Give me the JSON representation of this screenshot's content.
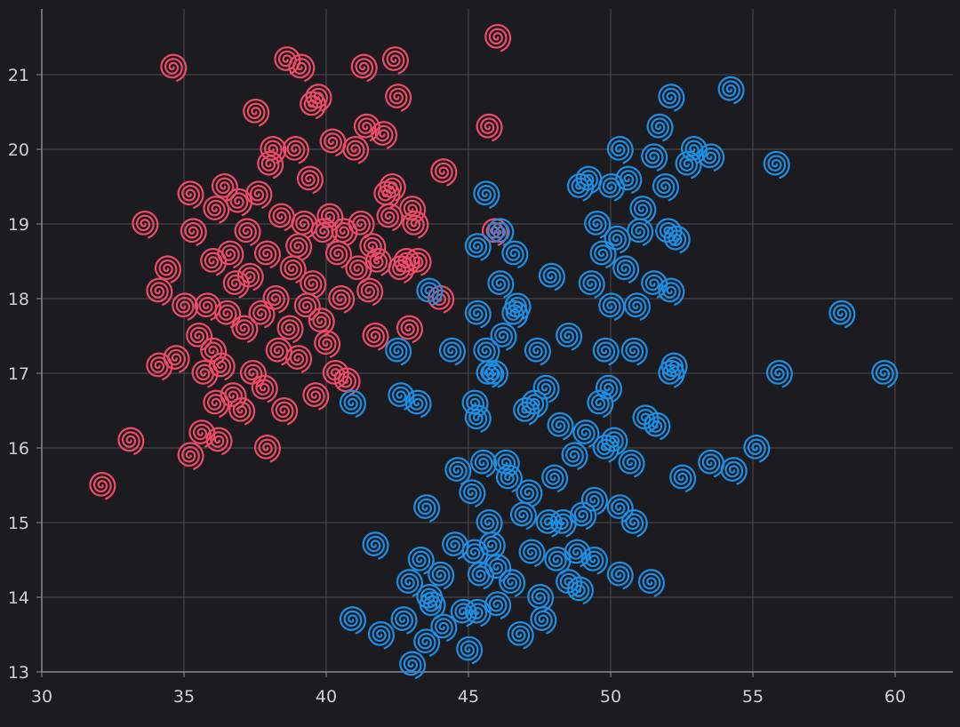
{
  "chart_data": {
    "type": "scatter",
    "title": "",
    "xlabel": "",
    "ylabel": "",
    "xlim": [
      30,
      62
    ],
    "ylim": [
      13,
      21.9
    ],
    "xticks": [
      30,
      35,
      40,
      45,
      50,
      55,
      60
    ],
    "yticks": [
      13,
      14,
      15,
      16,
      17,
      18,
      19,
      20,
      21
    ],
    "grid": true,
    "marker": "spiral",
    "series": [
      {
        "color": "#ef4a68",
        "points": [
          [
            32.1,
            15.5
          ],
          [
            33.1,
            16.1
          ],
          [
            33.6,
            19.0
          ],
          [
            34.1,
            17.1
          ],
          [
            34.1,
            18.1
          ],
          [
            34.4,
            18.4
          ],
          [
            34.6,
            21.1
          ],
          [
            34.7,
            17.2
          ],
          [
            35.0,
            17.9
          ],
          [
            35.2,
            19.4
          ],
          [
            35.2,
            15.9
          ],
          [
            35.3,
            18.9
          ],
          [
            35.5,
            17.5
          ],
          [
            35.6,
            16.2
          ],
          [
            35.7,
            17.0
          ],
          [
            35.8,
            17.9
          ],
          [
            36.0,
            18.5
          ],
          [
            36.0,
            17.3
          ],
          [
            36.1,
            19.2
          ],
          [
            36.1,
            16.6
          ],
          [
            36.2,
            16.1
          ],
          [
            36.3,
            17.1
          ],
          [
            36.4,
            19.5
          ],
          [
            36.5,
            17.8
          ],
          [
            36.6,
            18.6
          ],
          [
            36.7,
            16.7
          ],
          [
            36.8,
            18.2
          ],
          [
            36.9,
            19.3
          ],
          [
            37.0,
            16.5
          ],
          [
            37.1,
            17.6
          ],
          [
            37.2,
            18.9
          ],
          [
            37.3,
            18.3
          ],
          [
            37.4,
            17.0
          ],
          [
            37.5,
            20.5
          ],
          [
            37.6,
            19.4
          ],
          [
            37.7,
            17.8
          ],
          [
            37.8,
            16.8
          ],
          [
            37.9,
            18.6
          ],
          [
            37.9,
            16.0
          ],
          [
            38.0,
            19.8
          ],
          [
            38.1,
            20.0
          ],
          [
            38.2,
            18.0
          ],
          [
            38.3,
            17.3
          ],
          [
            38.4,
            19.1
          ],
          [
            38.5,
            16.5
          ],
          [
            38.6,
            21.2
          ],
          [
            38.7,
            17.6
          ],
          [
            38.8,
            18.4
          ],
          [
            38.9,
            20.0
          ],
          [
            39.0,
            17.2
          ],
          [
            39.0,
            18.7
          ],
          [
            39.1,
            21.1
          ],
          [
            39.2,
            19.0
          ],
          [
            39.3,
            17.9
          ],
          [
            39.4,
            19.6
          ],
          [
            39.5,
            20.6
          ],
          [
            39.5,
            18.2
          ],
          [
            39.6,
            16.7
          ],
          [
            39.7,
            20.7
          ],
          [
            39.8,
            17.7
          ],
          [
            39.9,
            18.9
          ],
          [
            40.0,
            17.4
          ],
          [
            40.1,
            19.1
          ],
          [
            40.2,
            20.1
          ],
          [
            40.3,
            17.0
          ],
          [
            40.4,
            18.6
          ],
          [
            40.5,
            18.0
          ],
          [
            40.6,
            18.9
          ],
          [
            40.7,
            16.9
          ],
          [
            41.0,
            20.0
          ],
          [
            41.1,
            18.4
          ],
          [
            41.2,
            19.0
          ],
          [
            41.3,
            21.1
          ],
          [
            41.4,
            20.3
          ],
          [
            41.5,
            18.1
          ],
          [
            41.6,
            18.7
          ],
          [
            41.7,
            17.5
          ],
          [
            41.8,
            18.5
          ],
          [
            42.0,
            20.2
          ],
          [
            42.1,
            19.4
          ],
          [
            42.2,
            19.1
          ],
          [
            42.3,
            19.5
          ],
          [
            42.4,
            21.2
          ],
          [
            42.5,
            20.7
          ],
          [
            42.6,
            18.4
          ],
          [
            42.8,
            18.5
          ],
          [
            42.9,
            17.6
          ],
          [
            43.0,
            19.2
          ],
          [
            43.1,
            19.0
          ],
          [
            43.2,
            18.5
          ],
          [
            44.0,
            18.0
          ],
          [
            44.1,
            19.7
          ],
          [
            45.7,
            20.3
          ],
          [
            46.0,
            21.5
          ],
          [
            45.9,
            18.9
          ]
        ]
      },
      {
        "color": "#1d90e6",
        "points": [
          [
            40.9,
            16.6
          ],
          [
            40.9,
            13.7
          ],
          [
            41.7,
            14.7
          ],
          [
            41.9,
            13.5
          ],
          [
            42.5,
            17.3
          ],
          [
            42.6,
            16.7
          ],
          [
            42.7,
            13.7
          ],
          [
            42.9,
            14.2
          ],
          [
            43.0,
            13.1
          ],
          [
            43.2,
            16.6
          ],
          [
            43.3,
            14.5
          ],
          [
            43.5,
            13.4
          ],
          [
            43.5,
            15.2
          ],
          [
            43.6,
            14.0
          ],
          [
            43.6,
            18.1
          ],
          [
            43.7,
            13.9
          ],
          [
            44.0,
            14.3
          ],
          [
            44.1,
            13.6
          ],
          [
            44.4,
            17.3
          ],
          [
            44.5,
            14.7
          ],
          [
            44.6,
            15.7
          ],
          [
            44.8,
            13.8
          ],
          [
            45.0,
            13.3
          ],
          [
            45.1,
            15.4
          ],
          [
            45.2,
            16.6
          ],
          [
            45.2,
            14.6
          ],
          [
            45.3,
            18.7
          ],
          [
            45.3,
            17.8
          ],
          [
            45.3,
            16.4
          ],
          [
            45.3,
            13.8
          ],
          [
            45.4,
            14.3
          ],
          [
            45.5,
            15.8
          ],
          [
            45.6,
            19.4
          ],
          [
            45.6,
            17.3
          ],
          [
            45.7,
            15.0
          ],
          [
            45.7,
            17.0
          ],
          [
            45.8,
            14.7
          ],
          [
            45.9,
            17.0
          ],
          [
            46.0,
            14.4
          ],
          [
            46.0,
            13.9
          ],
          [
            46.1,
            18.9
          ],
          [
            46.1,
            18.2
          ],
          [
            46.2,
            17.5
          ],
          [
            46.3,
            15.8
          ],
          [
            46.4,
            15.6
          ],
          [
            46.5,
            14.2
          ],
          [
            46.6,
            18.6
          ],
          [
            46.6,
            17.8
          ],
          [
            46.7,
            17.9
          ],
          [
            46.8,
            13.5
          ],
          [
            46.9,
            15.1
          ],
          [
            47.0,
            16.5
          ],
          [
            47.1,
            15.4
          ],
          [
            47.2,
            14.6
          ],
          [
            47.3,
            16.6
          ],
          [
            47.4,
            17.3
          ],
          [
            47.5,
            14.0
          ],
          [
            47.6,
            13.7
          ],
          [
            47.7,
            16.8
          ],
          [
            47.8,
            15.0
          ],
          [
            47.9,
            18.3
          ],
          [
            48.0,
            15.6
          ],
          [
            48.1,
            14.5
          ],
          [
            48.2,
            16.3
          ],
          [
            48.3,
            15.0
          ],
          [
            48.5,
            17.5
          ],
          [
            48.5,
            14.2
          ],
          [
            48.7,
            15.9
          ],
          [
            48.8,
            14.6
          ],
          [
            48.9,
            19.5
          ],
          [
            48.9,
            14.1
          ],
          [
            49.0,
            15.1
          ],
          [
            49.1,
            16.2
          ],
          [
            49.2,
            19.6
          ],
          [
            49.3,
            18.2
          ],
          [
            49.4,
            15.3
          ],
          [
            49.4,
            14.5
          ],
          [
            49.5,
            19.0
          ],
          [
            49.6,
            16.6
          ],
          [
            49.7,
            18.6
          ],
          [
            49.8,
            16.0
          ],
          [
            49.8,
            17.3
          ],
          [
            49.9,
            16.8
          ],
          [
            50.0,
            17.9
          ],
          [
            50.0,
            19.5
          ],
          [
            50.1,
            16.1
          ],
          [
            50.2,
            18.8
          ],
          [
            50.3,
            20.0
          ],
          [
            50.3,
            15.2
          ],
          [
            50.3,
            14.3
          ],
          [
            50.5,
            18.4
          ],
          [
            50.6,
            19.6
          ],
          [
            50.7,
            15.8
          ],
          [
            50.8,
            17.3
          ],
          [
            50.8,
            15.0
          ],
          [
            50.9,
            17.9
          ],
          [
            51.0,
            18.9
          ],
          [
            51.1,
            19.2
          ],
          [
            51.2,
            16.4
          ],
          [
            51.4,
            14.2
          ],
          [
            51.5,
            19.9
          ],
          [
            51.5,
            18.2
          ],
          [
            51.6,
            16.3
          ],
          [
            51.7,
            20.3
          ],
          [
            51.9,
            19.5
          ],
          [
            52.0,
            18.9
          ],
          [
            52.1,
            18.1
          ],
          [
            52.1,
            17.0
          ],
          [
            52.1,
            20.7
          ],
          [
            52.2,
            17.1
          ],
          [
            52.3,
            18.8
          ],
          [
            52.5,
            15.6
          ],
          [
            52.7,
            19.8
          ],
          [
            52.9,
            20.0
          ],
          [
            53.5,
            19.9
          ],
          [
            53.5,
            15.8
          ],
          [
            54.2,
            20.8
          ],
          [
            54.3,
            15.7
          ],
          [
            55.1,
            16.0
          ],
          [
            55.8,
            19.8
          ],
          [
            55.9,
            17.0
          ],
          [
            58.1,
            17.8
          ],
          [
            59.6,
            17.0
          ]
        ]
      }
    ]
  }
}
